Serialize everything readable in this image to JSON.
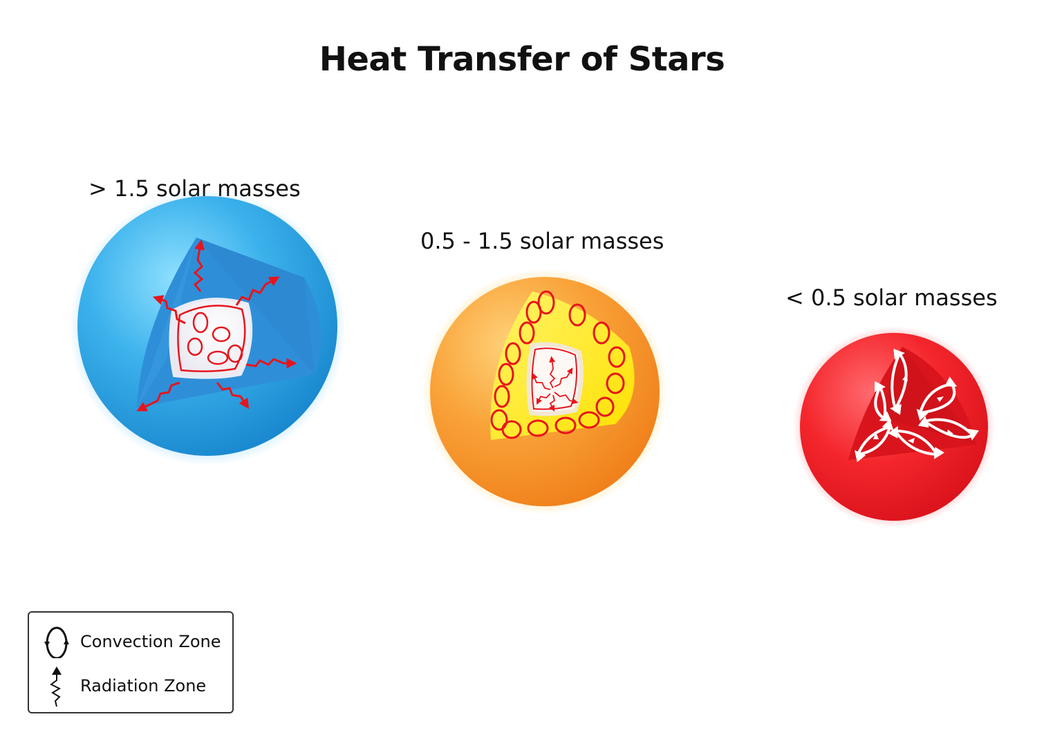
{
  "title": "Heat Transfer of Stars",
  "stars": [
    {
      "label": "> 1.5 solar masses",
      "color": "#3aa8e8",
      "core_zone": "Convection Zone",
      "outer_zone": "Radiation Zone"
    },
    {
      "label": "0.5 - 1.5 solar masses",
      "color": "#f7931e",
      "core_zone": "Radiation Zone",
      "outer_zone": "Convection Zone"
    },
    {
      "label": "< 0.5 solar masses",
      "color": "#ee1c24",
      "core_zone": "Convection Zone",
      "outer_zone": "Convection Zone"
    }
  ],
  "legend": {
    "convection_label": "Convection Zone",
    "radiation_label": "Radiation Zone"
  },
  "colors": {
    "arrow_red": "#e8141c",
    "cutaway_yellow": "#fff200",
    "core_white": "#fdfafa"
  }
}
